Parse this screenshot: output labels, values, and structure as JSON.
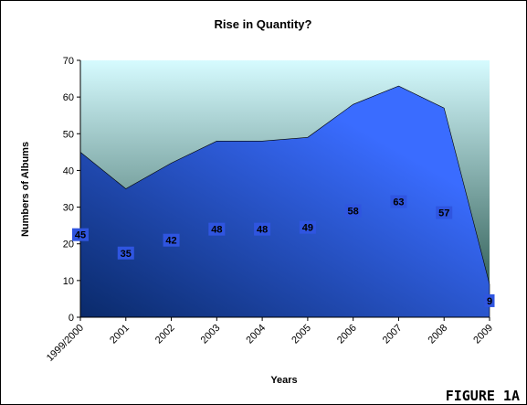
{
  "chart_data": {
    "type": "area",
    "title": "Rise in Quantity?",
    "xlabel": "Years",
    "ylabel": "Numbers of Albums",
    "categories": [
      "1999/2000",
      "2001",
      "2002",
      "2003",
      "2004",
      "2005",
      "2006",
      "2007",
      "2008",
      "2009"
    ],
    "values": [
      45,
      35,
      42,
      48,
      48,
      49,
      58,
      63,
      57,
      9
    ],
    "data_labels": [
      "45",
      "35",
      "42",
      "48",
      "48",
      "49",
      "58",
      "63",
      "57",
      "9"
    ],
    "ylim": [
      0,
      70
    ],
    "yticks": [
      "0",
      "10",
      "20",
      "30",
      "40",
      "50",
      "60",
      "70"
    ],
    "grid": false,
    "legend": "none",
    "colors": {
      "area_dark": "#0a2a6a",
      "area_light": "#3a6cff",
      "plot_bg_top": "#d6fbff",
      "plot_bg_bottom": "#1f4d44",
      "label_box": "#2f55e0"
    }
  },
  "figure_tag": "FIGURE 1A"
}
